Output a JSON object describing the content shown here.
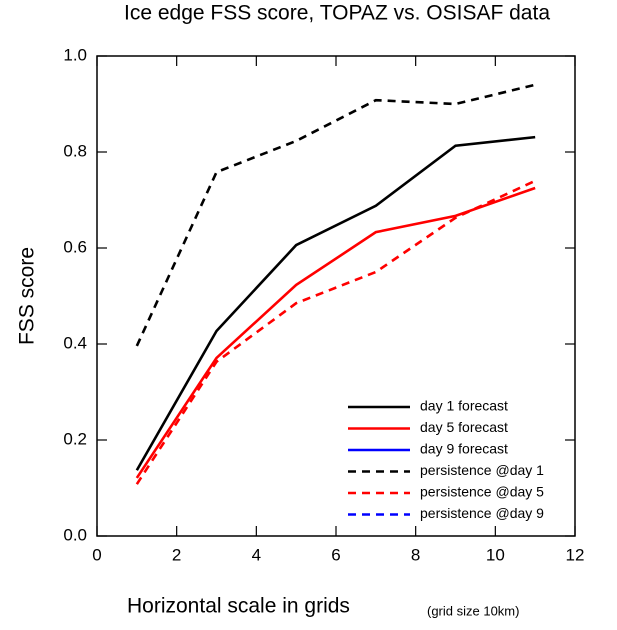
{
  "chart_data": {
    "type": "line",
    "title": "Ice edge FSS score, TOPAZ vs. OSISAF data",
    "x_label": "Horizontal scale in grids",
    "x_label_note": "(grid size 10km)",
    "y_label": "FSS score",
    "x": [
      1,
      3,
      5,
      7,
      9,
      11
    ],
    "series": [
      {
        "name": "day 1 forecast",
        "color": "#000000",
        "dash": false,
        "values": [
          0.137,
          0.427,
          0.606,
          0.688,
          0.813,
          0.831
        ]
      },
      {
        "name": "day 5 forecast",
        "color": "#ff0000",
        "dash": false,
        "values": [
          0.121,
          0.371,
          0.523,
          0.633,
          0.667,
          0.725
        ]
      },
      {
        "name": "day 9 forecast",
        "color": "#0000ff",
        "dash": false,
        "values": [
          null,
          null,
          null,
          null,
          null,
          null
        ]
      },
      {
        "name": "persistence @day 1",
        "color": "#000000",
        "dash": true,
        "values": [
          0.396,
          0.758,
          0.823,
          0.908,
          0.9,
          0.94
        ]
      },
      {
        "name": "persistence @day 5",
        "color": "#ff0000",
        "dash": true,
        "values": [
          0.108,
          0.363,
          0.485,
          0.55,
          0.663,
          0.74
        ]
      },
      {
        "name": "persistence @day 9",
        "color": "#0000ff",
        "dash": true,
        "values": [
          null,
          null,
          null,
          null,
          null,
          null
        ]
      }
    ],
    "xlim": [
      0,
      12
    ],
    "xticks": [
      0,
      2,
      4,
      6,
      8,
      10,
      12
    ],
    "ylim": [
      0,
      1
    ],
    "yticks": [
      {
        "value": 0,
        "label": "0.0"
      },
      0.2,
      0.4,
      0.6,
      0.8,
      {
        "value": 1,
        "label": "1.0"
      }
    ],
    "legend": "lower right"
  }
}
